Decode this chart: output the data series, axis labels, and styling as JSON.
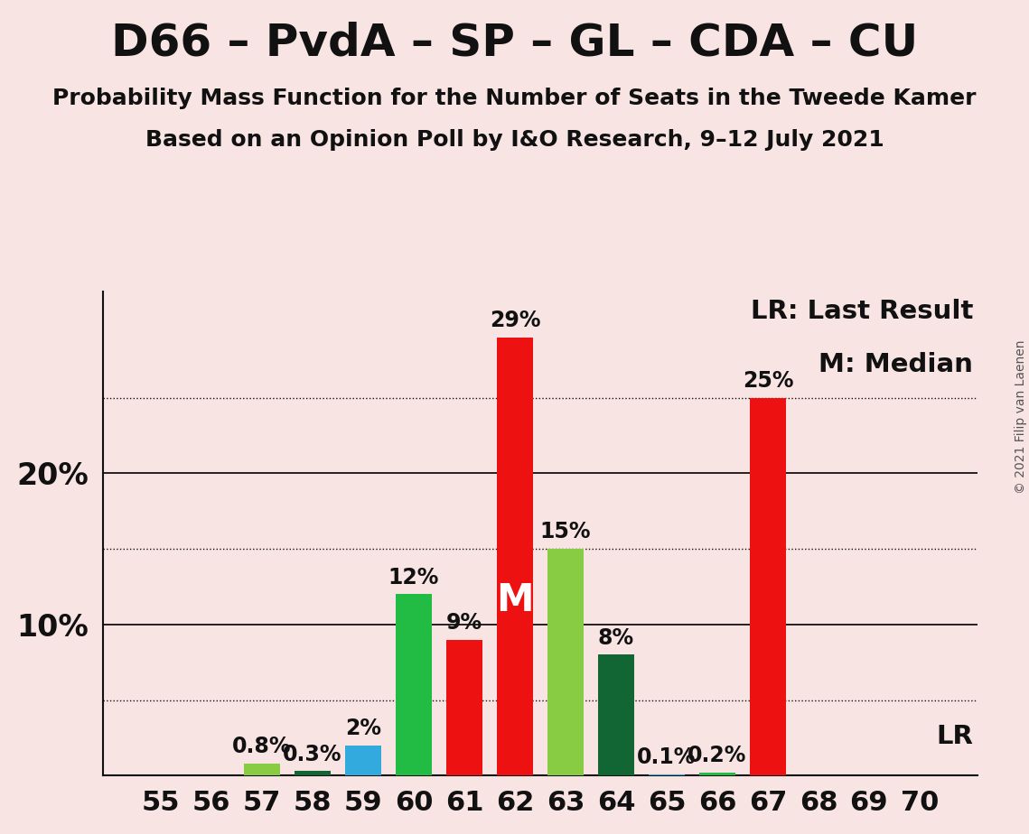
{
  "title": "D66 – PvdA – SP – GL – CDA – CU",
  "subtitle1": "Probability Mass Function for the Number of Seats in the Tweede Kamer",
  "subtitle2": "Based on an Opinion Poll by I&O Research, 9–12 July 2021",
  "copyright": "© 2021 Filip van Laenen",
  "background_color": "#f9e4e4",
  "seats": [
    55,
    56,
    57,
    58,
    59,
    60,
    61,
    62,
    63,
    64,
    65,
    66,
    67,
    68,
    69,
    70
  ],
  "probabilities": [
    0.0,
    0.0,
    0.8,
    0.3,
    2.0,
    12.0,
    9.0,
    29.0,
    15.0,
    8.0,
    0.1,
    0.2,
    25.0,
    0.0,
    0.0,
    0.0
  ],
  "colors": [
    "#ee1111",
    "#ee1111",
    "#88cc44",
    "#116633",
    "#33aadd",
    "#22bb44",
    "#ee1111",
    "#ee1111",
    "#88cc44",
    "#116633",
    "#33aadd",
    "#22bb44",
    "#ee1111",
    "#ee1111",
    "#ee1111",
    "#ee1111"
  ],
  "median_seat": 62,
  "lr_seat": 67,
  "ylim": [
    0,
    32
  ],
  "legend_lr": "LR: Last Result",
  "legend_m": "M: Median",
  "lr_label": "LR",
  "title_fontsize": 36,
  "subtitle_fontsize": 18,
  "tick_fontsize": 22,
  "bar_label_fontsize": 17,
  "legend_fontsize": 21,
  "ytick_fontsize": 24,
  "copyright_fontsize": 10,
  "median_label_fontsize": 30
}
